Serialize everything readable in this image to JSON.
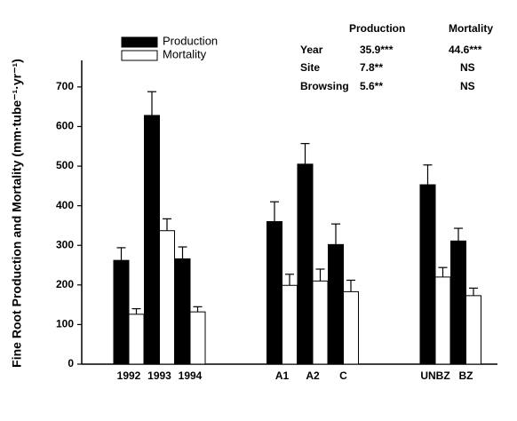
{
  "chart_data": {
    "type": "bar",
    "y_label": "Fine Root Production and Mortality (mm·tube⁻¹·yr⁻¹)",
    "categories": [
      "1992",
      "1993",
      "1994",
      null,
      null,
      "A1",
      "A2",
      "C",
      null,
      null,
      "UNBZ",
      "BZ"
    ],
    "series": [
      {
        "name": "Production",
        "color": "#000000",
        "values": [
          262,
          628,
          266,
          null,
          null,
          360,
          505,
          302,
          null,
          null,
          453,
          311
        ],
        "errors": [
          32,
          60,
          30,
          null,
          null,
          50,
          52,
          52,
          null,
          null,
          50,
          32
        ]
      },
      {
        "name": "Mortality",
        "color": "#ffffff",
        "values": [
          126,
          337,
          132,
          null,
          null,
          199,
          210,
          183,
          null,
          null,
          220,
          173
        ],
        "errors": [
          14,
          30,
          13,
          null,
          null,
          28,
          30,
          29,
          null,
          null,
          24,
          19
        ]
      }
    ],
    "ylim": [
      0,
      767
    ],
    "yticks": [
      0,
      100,
      200,
      300,
      400,
      500,
      600,
      700
    ],
    "stats_table": {
      "headers": [
        "Production",
        "Mortality"
      ],
      "rows": [
        [
          "Year",
          "35.9***",
          "44.6***"
        ],
        [
          "Site",
          "7.8**",
          "NS"
        ],
        [
          "Browsing",
          "5.6**",
          "NS"
        ]
      ]
    }
  }
}
